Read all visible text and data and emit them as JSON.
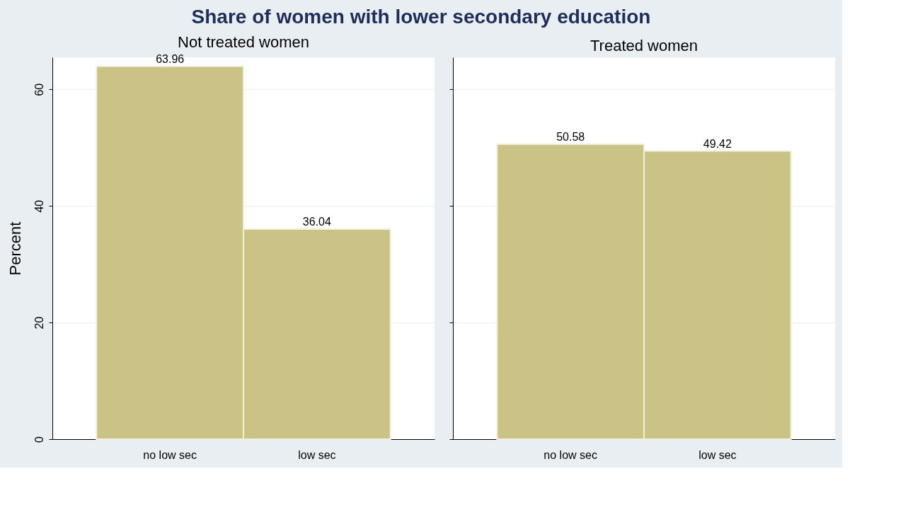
{
  "chart_data": [
    {
      "type": "bar",
      "title": "Share of women with lower secondary education",
      "subtitle": "Not treated women",
      "ylabel": "Percent",
      "categories": [
        "no low sec",
        "low sec"
      ],
      "values": [
        63.96,
        36.04
      ],
      "value_labels": [
        "63.96",
        "36.04"
      ],
      "color": "#cbc385",
      "ylim": [
        0,
        65.5
      ],
      "yticks": [
        0,
        20,
        40,
        60
      ],
      "grid": "y"
    },
    {
      "type": "bar",
      "subtitle": "Treated women",
      "categories": [
        "no low sec",
        "low sec"
      ],
      "values": [
        50.58,
        49.42
      ],
      "value_labels": [
        "50.58",
        "49.42"
      ],
      "color": "#cbc385",
      "ylim": [
        0,
        65.5
      ],
      "yticks": [
        0,
        20,
        40,
        60
      ],
      "grid": "y",
      "tick_labels": "x"
    }
  ]
}
